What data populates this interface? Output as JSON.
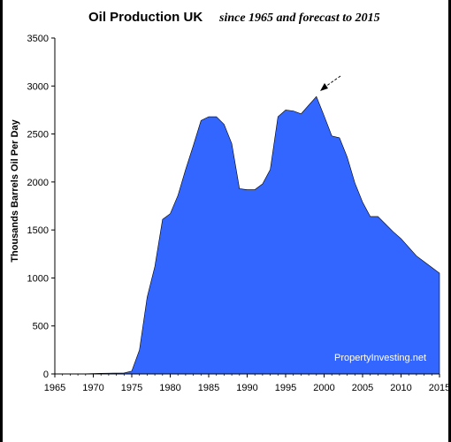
{
  "chart_data": {
    "type": "area",
    "title": "Oil Production UK",
    "subtitle": "since 1965 and forecast to 2015",
    "xlabel": "",
    "ylabel": "Thousands Barrels Oil Per Day",
    "xlim": [
      1965,
      2015
    ],
    "ylim": [
      0,
      3500
    ],
    "x_ticks": [
      1965,
      1970,
      1975,
      1980,
      1985,
      1990,
      1995,
      2000,
      2005,
      2010,
      2015
    ],
    "y_ticks": [
      0,
      500,
      1000,
      1500,
      2000,
      2500,
      3000,
      3500
    ],
    "grid": false,
    "legend": "none",
    "fill_color": "#3366ff",
    "watermark": "PropertyInvesting.net",
    "annotation": "arrow pointing to 1999 peak",
    "series": [
      {
        "x": [
          1965,
          1966,
          1967,
          1968,
          1969,
          1970,
          1971,
          1972,
          1973,
          1974,
          1975,
          1976,
          1977,
          1978,
          1979,
          1980,
          1981,
          1982,
          1983,
          1984,
          1985,
          1986,
          1987,
          1988,
          1989,
          1990,
          1991,
          1992,
          1993,
          1994,
          1995,
          1996,
          1997,
          1998,
          1999,
          2000,
          2001,
          2002,
          2003,
          2004,
          2005,
          2006,
          2007,
          2008,
          2009,
          2010,
          2011,
          2012,
          2013,
          2014,
          2015
        ],
        "values": [
          2,
          2,
          2,
          2,
          2,
          4,
          7,
          8,
          9,
          10,
          30,
          250,
          800,
          1120,
          1610,
          1670,
          1860,
          2130,
          2380,
          2640,
          2680,
          2680,
          2600,
          2400,
          1930,
          1920,
          1920,
          1980,
          2130,
          2680,
          2750,
          2740,
          2710,
          2800,
          2890,
          2690,
          2480,
          2460,
          2260,
          1990,
          1790,
          1640,
          1640,
          1560,
          1480,
          1410,
          1320,
          1230,
          1170,
          1110,
          1050
        ]
      }
    ]
  }
}
